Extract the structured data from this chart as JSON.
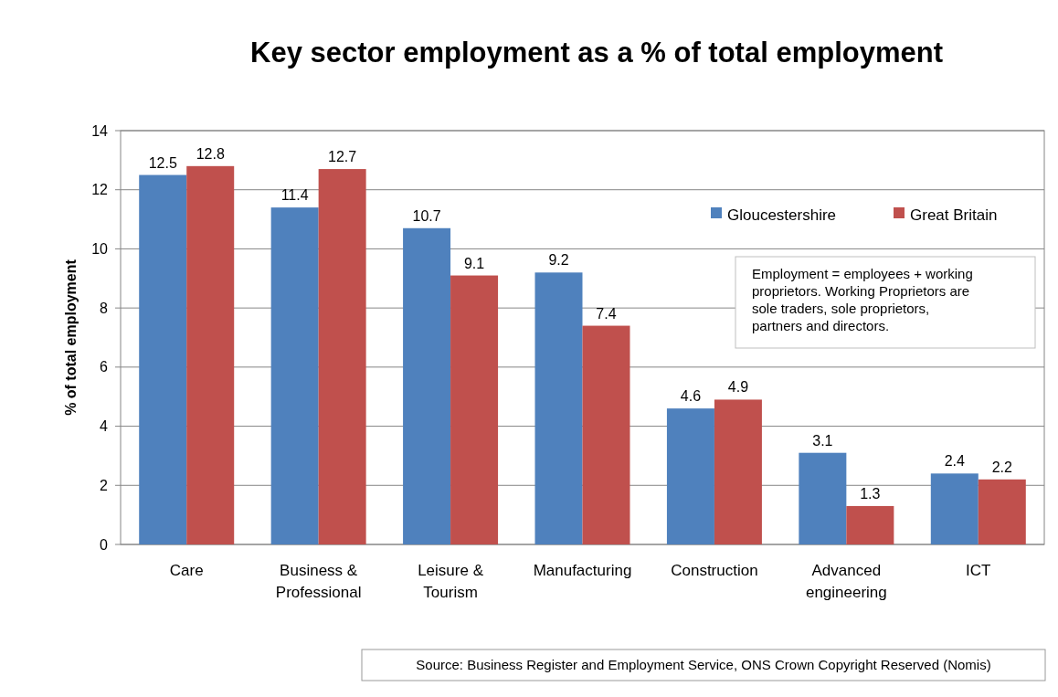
{
  "chart_data": {
    "type": "bar",
    "title": "Key sector employment as a % of total employment",
    "ylabel": "% of total employment",
    "categories": [
      "Care",
      "Business & Professional",
      "Leisure & Tourism",
      "Manufacturing",
      "Construction",
      "Advanced engineering",
      "ICT"
    ],
    "series": [
      {
        "name": "Gloucestershire",
        "color": "#4f81bd",
        "values": [
          12.5,
          11.4,
          10.7,
          9.2,
          4.6,
          3.1,
          2.4
        ]
      },
      {
        "name": "Great Britain",
        "color": "#c0504d",
        "values": [
          12.8,
          12.7,
          9.1,
          7.4,
          4.9,
          1.3,
          2.2
        ]
      }
    ],
    "ylim": [
      0,
      14
    ],
    "yticks": [
      0,
      2,
      4,
      6,
      8,
      10,
      12,
      14
    ],
    "grid": "y",
    "legend": "top right",
    "data_labels": true,
    "annotations": [
      "Employment = employees + working proprietors. Working Proprietors are sole traders, sole proprietors, partners and directors.",
      "Source: Business Register and Employment Service, ONS Crown Copyright Reserved (Nomis)"
    ]
  }
}
